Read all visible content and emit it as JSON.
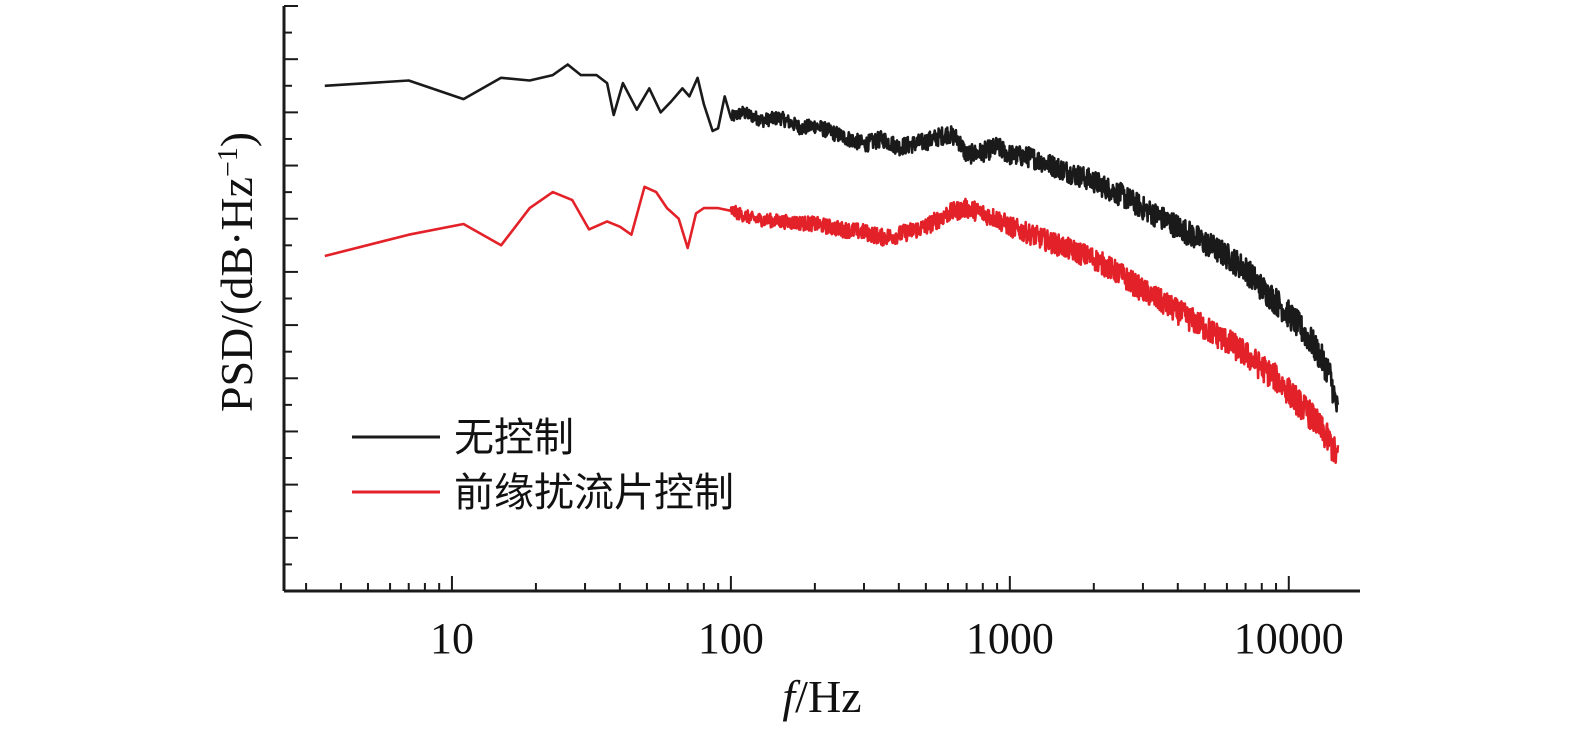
{
  "chart_data": {
    "type": "line",
    "title": "",
    "xlabel_italic": "f",
    "xlabel_rest": "/Hz",
    "ylabel": "PSD/(dB·Hz",
    "ylabel_sup": "−1",
    "ylabel_close": ")",
    "xscale": "log",
    "xlim": [
      2.5,
      18000
    ],
    "ylim": [
      0,
      11
    ],
    "xticks": [
      {
        "value": 10,
        "label": "10"
      },
      {
        "value": 100,
        "label": "100"
      },
      {
        "value": 1000,
        "label": "1000"
      },
      {
        "value": 10000,
        "label": "10000"
      }
    ],
    "yticks_unlabeled": true,
    "legend_position": "bottom-left",
    "series": [
      {
        "name": "无控制",
        "color": "#1a1a1a",
        "x": [
          3.5,
          7,
          11,
          15,
          19,
          23,
          26,
          29,
          33,
          36,
          38,
          41,
          46,
          51,
          56,
          61,
          67,
          71,
          76,
          80,
          86,
          90,
          95,
          100,
          110,
          130,
          150,
          180,
          200,
          250,
          300,
          350,
          400,
          500,
          600,
          650,
          700,
          800,
          900,
          1000,
          1200,
          1500,
          2000,
          2500,
          3000,
          4000,
          5000,
          6000,
          7000,
          8000,
          9000,
          10000,
          11000,
          12000,
          13000,
          14000,
          15000
        ],
        "y": [
          9.5,
          9.6,
          9.25,
          9.65,
          9.6,
          9.7,
          9.9,
          9.7,
          9.7,
          9.55,
          8.95,
          9.55,
          9.05,
          9.45,
          9.0,
          9.2,
          9.45,
          9.3,
          9.65,
          9.15,
          8.65,
          8.7,
          9.3,
          8.9,
          9.0,
          8.85,
          8.9,
          8.7,
          8.75,
          8.55,
          8.4,
          8.5,
          8.35,
          8.45,
          8.6,
          8.5,
          8.2,
          8.25,
          8.35,
          8.2,
          8.15,
          7.95,
          7.7,
          7.45,
          7.2,
          6.85,
          6.55,
          6.3,
          6.05,
          5.7,
          5.45,
          5.2,
          4.95,
          4.7,
          4.4,
          4.1,
          3.35
        ],
        "noise": 0.2
      },
      {
        "name": "前缘扰流片控制",
        "color": "#e32128",
        "x": [
          3.5,
          7,
          11,
          15,
          19,
          23,
          27,
          31,
          36,
          40,
          44,
          49,
          54,
          59,
          65,
          70,
          75,
          80,
          90,
          100,
          120,
          150,
          200,
          250,
          300,
          350,
          400,
          500,
          600,
          700,
          800,
          900,
          1000,
          1200,
          1500,
          2000,
          2500,
          3000,
          4000,
          5000,
          6000,
          7000,
          8000,
          9000,
          10000,
          11000,
          12000,
          13000,
          14000,
          15000
        ],
        "y": [
          6.3,
          6.7,
          6.9,
          6.5,
          7.2,
          7.5,
          7.35,
          6.8,
          6.95,
          6.85,
          6.7,
          7.6,
          7.5,
          7.2,
          7.0,
          6.45,
          7.1,
          7.2,
          7.2,
          7.15,
          7.0,
          6.95,
          6.9,
          6.8,
          6.75,
          6.65,
          6.7,
          6.85,
          7.1,
          7.2,
          7.1,
          7.0,
          6.85,
          6.7,
          6.5,
          6.25,
          5.95,
          5.65,
          5.25,
          4.95,
          4.7,
          4.45,
          4.2,
          4.0,
          3.75,
          3.5,
          3.3,
          3.05,
          2.8,
          2.5
        ],
        "noise": 0.2
      }
    ]
  },
  "colors": {
    "axis": "#1a1a1a",
    "background": "#ffffff"
  }
}
